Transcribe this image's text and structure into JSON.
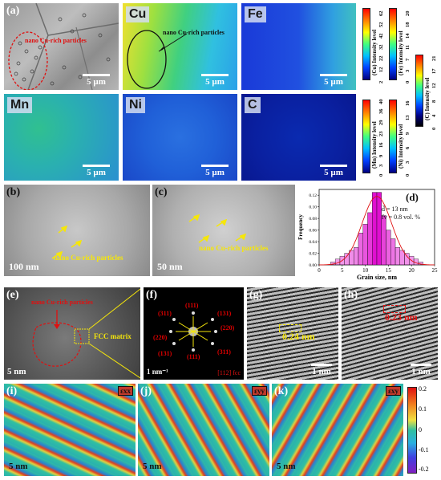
{
  "row1": {
    "a": {
      "label": "(a)",
      "annotation": "nano Cu-rich particles",
      "scale": "5 µm"
    },
    "cu": {
      "element": "Cu",
      "annotation": "nano Cu-rich particles",
      "scale": "5 µm"
    },
    "fe": {
      "element": "Fe",
      "scale": "5 µm"
    },
    "cbar_cu": {
      "title": "(Cu) Intensity level",
      "ticks": [
        "2",
        "12",
        "22",
        "32",
        "42",
        "52",
        "62"
      ]
    },
    "cbar_fe": {
      "title": "(Fe) Intensity level",
      "ticks": [
        "0",
        "3",
        "7",
        "11",
        "14",
        "18",
        "20"
      ]
    },
    "cbar_c": {
      "title": "(C) Intensity level",
      "ticks": [
        "0",
        "4",
        "8",
        "12",
        "17",
        "21"
      ]
    }
  },
  "row2": {
    "mn": {
      "element": "Mn",
      "scale": "5 µm"
    },
    "ni": {
      "element": "Ni",
      "scale": "5 µm"
    },
    "c": {
      "element": "C",
      "scale": "5 µm"
    },
    "cbar_mn": {
      "title": "(Mn) Intensity level",
      "ticks": [
        "0",
        "3",
        "9",
        "16",
        "23",
        "29",
        "36",
        "40"
      ]
    },
    "cbar_ni": {
      "title": "(Ni) Intensity level",
      "ticks": [
        "0",
        "3",
        "6",
        "9",
        "13",
        "16"
      ]
    }
  },
  "row3": {
    "b": {
      "label": "(b)",
      "annotation": "nano Cu-rich particles",
      "scale": "100 nm"
    },
    "c": {
      "label": "(c)",
      "annotation": "nano Cu-rich particles",
      "scale": "50 nm"
    },
    "d": {
      "label": "(d)",
      "stat1": "d̄ = 13 nm",
      "stat2": "fv = 0.8 vol. %"
    }
  },
  "chart_data": {
    "type": "bar",
    "xlabel": "Grain size, nm",
    "ylabel": "Frequency",
    "xlim": [
      0,
      25
    ],
    "ylim": [
      0,
      0.13
    ],
    "xticks": [
      "0",
      "5",
      "10",
      "15",
      "20",
      "25"
    ],
    "yticks": [
      "0.00",
      "0.02",
      "0.04",
      "0.06",
      "0.08",
      "0.10",
      "0.12"
    ],
    "bins": [
      3,
      4,
      5,
      6,
      7,
      8,
      9,
      10,
      11,
      12,
      13,
      14,
      15,
      16,
      17,
      18,
      19,
      20,
      21,
      22
    ],
    "values": [
      0.005,
      0.01,
      0.015,
      0.02,
      0.025,
      0.03,
      0.055,
      0.07,
      0.09,
      0.125,
      0.125,
      0.085,
      0.06,
      0.045,
      0.03,
      0.025,
      0.02,
      0.015,
      0.01,
      0.005
    ],
    "fit_curve": true,
    "bar_color": "#e010d0"
  },
  "row4": {
    "e": {
      "label": "(e)",
      "annotation": "nano Cu-rich particles",
      "matrix": "FCC matrix",
      "scale": "5 nm"
    },
    "f": {
      "label": "(f)",
      "scale": "1 nm⁻¹",
      "zone": "[112] fcc",
      "spots": [
        "(311)",
        "(111)",
        "(131)",
        "(220)",
        "(220)",
        "(131)",
        "(111)",
        "(311)"
      ]
    },
    "g": {
      "label": "(g)",
      "spacing": "0.24 nm",
      "scale": "1 nm"
    },
    "h": {
      "label": "(h)",
      "spacing": "0.23 nm",
      "scale": "1 nm"
    }
  },
  "row5": {
    "i": {
      "label": "(i)",
      "tag": "εxx",
      "scale": "5 nm"
    },
    "j": {
      "label": "(j)",
      "tag": "εyy",
      "scale": "5 nm"
    },
    "k": {
      "label": "(k)",
      "tag": "εxy",
      "scale": "5 nm"
    },
    "cbar": {
      "ticks": [
        "0.2",
        "0.1",
        "0",
        "-0.1",
        "-0.2"
      ]
    }
  },
  "colors": {
    "red": "#e01010",
    "yellow": "#f5e60a",
    "magenta": "#e010d0"
  }
}
